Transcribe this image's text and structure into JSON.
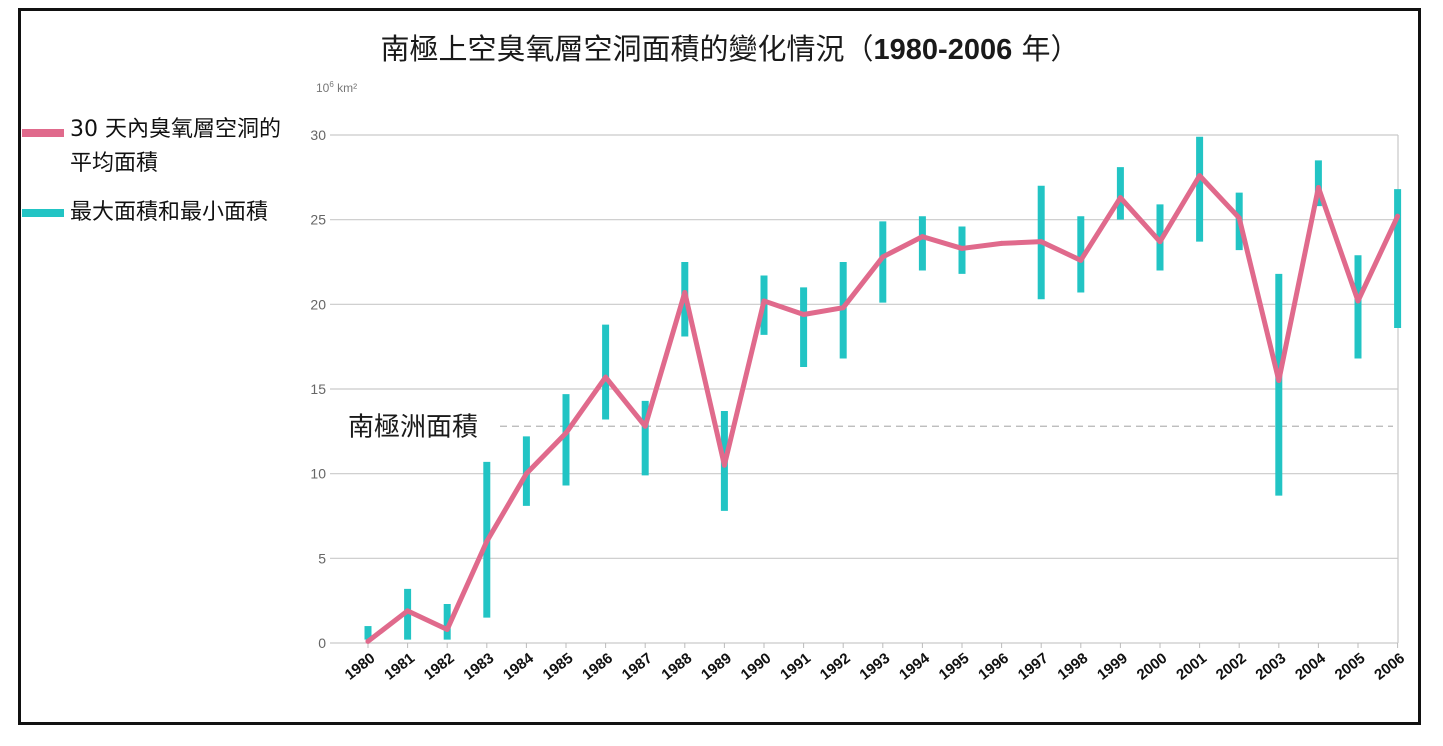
{
  "chart_data": {
    "type": "line",
    "title_main": "南極上空臭氧層空洞面積的變化情況（",
    "title_years": "1980-2006",
    "title_end": " 年）",
    "unit_base": "10",
    "unit_exp": "6",
    "unit_rest": " km²",
    "x": [
      "1980",
      "1981",
      "1982",
      "1983",
      "1984",
      "1985",
      "1986",
      "1987",
      "1988",
      "1989",
      "1990",
      "1991",
      "1992",
      "1993",
      "1994",
      "1995",
      "1996",
      "1997",
      "1998",
      "1999",
      "2000",
      "2001",
      "2002",
      "2003",
      "2004",
      "2005",
      "2006"
    ],
    "ylim": [
      0,
      30
    ],
    "yticks": [
      0,
      5,
      10,
      15,
      20,
      25,
      30
    ],
    "grid": true,
    "series": [
      {
        "name": "30 天內臭氧層空洞的平均面積",
        "color": "#e06a8c",
        "values": [
          0.1,
          1.9,
          0.8,
          6.0,
          10.0,
          12.4,
          15.7,
          12.8,
          20.7,
          10.5,
          20.2,
          19.4,
          19.8,
          22.8,
          24.0,
          23.3,
          23.6,
          23.7,
          22.6,
          26.3,
          23.7,
          27.6,
          25.1,
          15.5,
          26.9,
          20.2,
          25.2
        ]
      },
      {
        "name": "最大面積和最小面積",
        "color": "#22c4c4",
        "min": [
          0.2,
          0.2,
          0.2,
          1.5,
          8.1,
          9.3,
          13.2,
          9.9,
          18.1,
          7.8,
          18.2,
          16.3,
          16.8,
          20.1,
          22.0,
          21.8,
          null,
          20.3,
          20.7,
          25.0,
          22.0,
          23.7,
          23.2,
          8.7,
          25.8,
          16.8,
          18.6
        ],
        "max": [
          1.0,
          3.2,
          2.3,
          10.7,
          12.2,
          14.7,
          18.8,
          14.3,
          22.5,
          13.7,
          21.7,
          21.0,
          22.5,
          24.9,
          25.2,
          24.6,
          null,
          27.0,
          25.2,
          28.1,
          25.9,
          29.9,
          26.6,
          21.8,
          28.5,
          22.9,
          26.8
        ]
      }
    ],
    "reference_line": {
      "label": "南極洲面積",
      "value": 12.8
    }
  },
  "legend": {
    "line_label": "30 天內臭氧層空洞的平均面積",
    "bar_label": "最大面積和最小面積"
  }
}
